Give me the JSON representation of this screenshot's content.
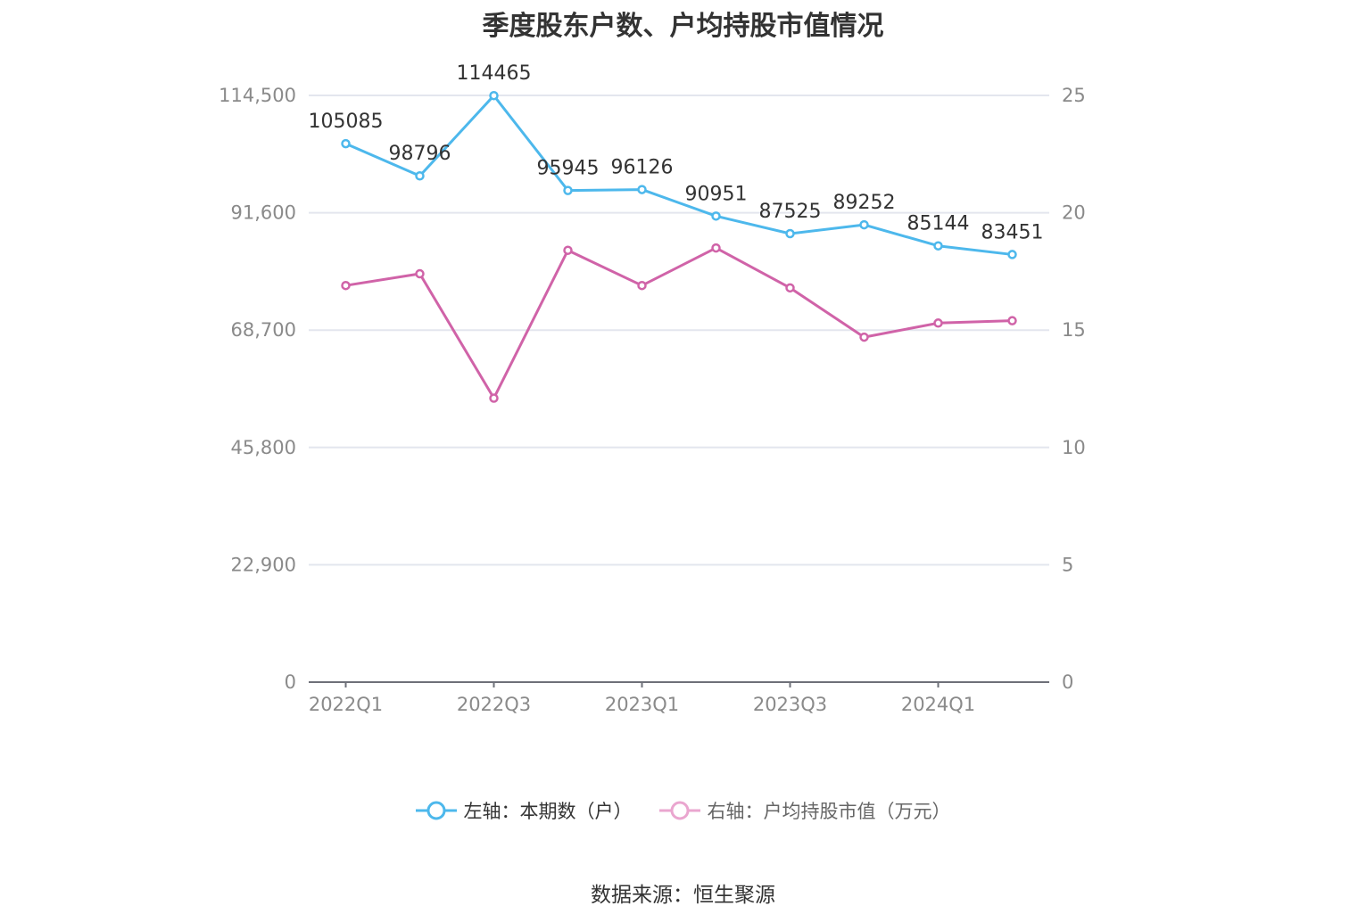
{
  "chart_data": {
    "type": "line",
    "title": "季度股东户数、户均持股市值情况",
    "categories": [
      "2022Q1",
      "2022Q2",
      "2022Q3",
      "2022Q4",
      "2023Q1",
      "2023Q2",
      "2023Q3",
      "2023Q4",
      "2024Q1",
      "2024Q2"
    ],
    "x_tick_labels": [
      "2022Q1",
      "2022Q3",
      "2023Q1",
      "2023Q3",
      "2024Q1"
    ],
    "left_axis": {
      "ylim": [
        0,
        114500
      ],
      "ticks": [
        0,
        22900,
        45800,
        68700,
        91600,
        114500
      ],
      "tick_labels": [
        "0",
        "22,900",
        "45,800",
        "68,700",
        "91,600",
        "114,500"
      ]
    },
    "right_axis": {
      "ylim": [
        0,
        25
      ],
      "ticks": [
        0,
        5,
        10,
        15,
        20,
        25
      ],
      "tick_labels": [
        "0",
        "5",
        "10",
        "15",
        "20",
        "25"
      ]
    },
    "grid": true,
    "legend_position": "bottom",
    "series": [
      {
        "name": "左轴：本期数（户）",
        "axis": "left",
        "color": "#4db8ec",
        "values": [
          105085,
          98796,
          114465,
          95945,
          96126,
          90951,
          87525,
          89252,
          85144,
          83451
        ],
        "data_labels": [
          "105085",
          "98796",
          "114465",
          "95945",
          "96126",
          "90951",
          "87525",
          "89252",
          "85144",
          "83451"
        ]
      },
      {
        "name": "右轴：户均持股市值（万元）",
        "axis": "right",
        "color": "#d063a8",
        "values": [
          16.9,
          17.4,
          12.1,
          18.4,
          16.9,
          18.5,
          16.8,
          14.7,
          15.3,
          15.4
        ]
      }
    ],
    "source": "数据来源：恒生聚源"
  }
}
